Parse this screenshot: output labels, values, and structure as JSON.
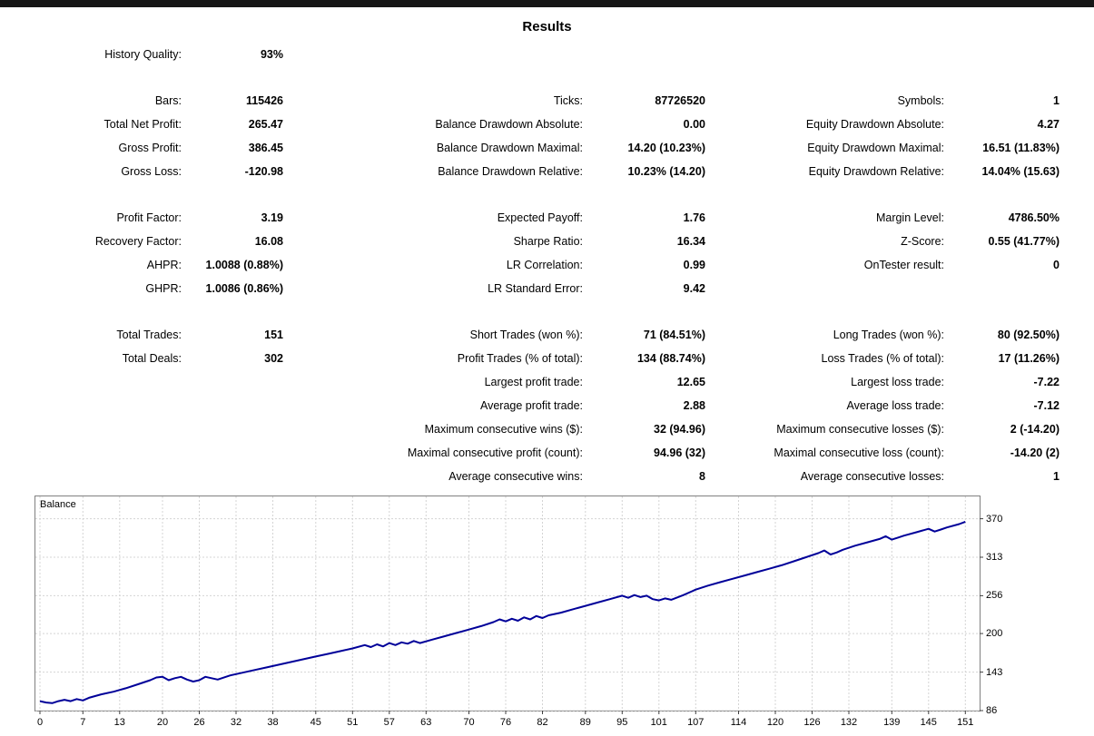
{
  "header": {
    "title": "Results"
  },
  "stats": {
    "sections": [
      {
        "rows": [
          [
            {
              "label": "History Quality:",
              "value": "93%"
            },
            null,
            null
          ]
        ]
      },
      {
        "rows": [
          [
            {
              "label": "Bars:",
              "value": "115426"
            },
            {
              "label": "Ticks:",
              "value": "87726520"
            },
            {
              "label": "Symbols:",
              "value": "1"
            }
          ],
          [
            {
              "label": "Total Net Profit:",
              "value": "265.47"
            },
            {
              "label": "Balance Drawdown Absolute:",
              "value": "0.00"
            },
            {
              "label": "Equity Drawdown Absolute:",
              "value": "4.27"
            }
          ],
          [
            {
              "label": "Gross Profit:",
              "value": "386.45"
            },
            {
              "label": "Balance Drawdown Maximal:",
              "value": "14.20 (10.23%)"
            },
            {
              "label": "Equity Drawdown Maximal:",
              "value": "16.51 (11.83%)"
            }
          ],
          [
            {
              "label": "Gross Loss:",
              "value": "-120.98"
            },
            {
              "label": "Balance Drawdown Relative:",
              "value": "10.23% (14.20)"
            },
            {
              "label": "Equity Drawdown Relative:",
              "value": "14.04% (15.63)"
            }
          ]
        ]
      },
      {
        "rows": [
          [
            {
              "label": "Profit Factor:",
              "value": "3.19"
            },
            {
              "label": "Expected Payoff:",
              "value": "1.76"
            },
            {
              "label": "Margin Level:",
              "value": "4786.50%"
            }
          ],
          [
            {
              "label": "Recovery Factor:",
              "value": "16.08"
            },
            {
              "label": "Sharpe Ratio:",
              "value": "16.34"
            },
            {
              "label": "Z-Score:",
              "value": "0.55 (41.77%)"
            }
          ],
          [
            {
              "label": "AHPR:",
              "value": "1.0088 (0.88%)"
            },
            {
              "label": "LR Correlation:",
              "value": "0.99"
            },
            {
              "label": "OnTester result:",
              "value": "0"
            }
          ],
          [
            {
              "label": "GHPR:",
              "value": "1.0086 (0.86%)"
            },
            {
              "label": "LR Standard Error:",
              "value": "9.42"
            },
            null
          ]
        ]
      },
      {
        "rows": [
          [
            {
              "label": "Total Trades:",
              "value": "151"
            },
            {
              "label": "Short Trades (won %):",
              "value": "71 (84.51%)"
            },
            {
              "label": "Long Trades (won %):",
              "value": "80 (92.50%)"
            }
          ],
          [
            {
              "label": "Total Deals:",
              "value": "302"
            },
            {
              "label": "Profit Trades (% of total):",
              "value": "134 (88.74%)"
            },
            {
              "label": "Loss Trades (% of total):",
              "value": "17 (11.26%)"
            }
          ],
          [
            null,
            {
              "label": "Largest profit trade:",
              "value": "12.65"
            },
            {
              "label": "Largest loss trade:",
              "value": "-7.22"
            }
          ],
          [
            null,
            {
              "label": "Average profit trade:",
              "value": "2.88"
            },
            {
              "label": "Average loss trade:",
              "value": "-7.12"
            }
          ],
          [
            null,
            {
              "label": "Maximum consecutive wins ($):",
              "value": "32 (94.96)"
            },
            {
              "label": "Maximum consecutive losses ($):",
              "value": "2 (-14.20)"
            }
          ],
          [
            null,
            {
              "label": "Maximal consecutive profit (count):",
              "value": "94.96 (32)"
            },
            {
              "label": "Maximal consecutive loss (count):",
              "value": "-14.20 (2)"
            }
          ],
          [
            null,
            {
              "label": "Average consecutive wins:",
              "value": "8"
            },
            {
              "label": "Average consecutive losses:",
              "value": "1"
            }
          ]
        ]
      }
    ]
  },
  "chart_data": {
    "type": "line",
    "series_name": "Balance",
    "title": "Balance",
    "xlabel": "",
    "ylabel": "",
    "line_color": "#000099",
    "xlim": [
      0,
      152
    ],
    "ylim": [
      86,
      403
    ],
    "xticks": [
      0,
      7,
      13,
      20,
      26,
      32,
      38,
      45,
      51,
      57,
      63,
      70,
      76,
      82,
      89,
      95,
      101,
      107,
      114,
      120,
      126,
      132,
      139,
      145,
      151
    ],
    "yticks": [
      86,
      143,
      200,
      256,
      313,
      370
    ],
    "points": [
      [
        0,
        100
      ],
      [
        1,
        98
      ],
      [
        2,
        97
      ],
      [
        3,
        100
      ],
      [
        4,
        102
      ],
      [
        5,
        100
      ],
      [
        6,
        103
      ],
      [
        7,
        101
      ],
      [
        8,
        105
      ],
      [
        10,
        110
      ],
      [
        12,
        114
      ],
      [
        14,
        119
      ],
      [
        16,
        125
      ],
      [
        18,
        131
      ],
      [
        19,
        135
      ],
      [
        20,
        136
      ],
      [
        21,
        131
      ],
      [
        22,
        134
      ],
      [
        23,
        136
      ],
      [
        24,
        132
      ],
      [
        25,
        129
      ],
      [
        26,
        131
      ],
      [
        27,
        136
      ],
      [
        28,
        134
      ],
      [
        29,
        132
      ],
      [
        31,
        138
      ],
      [
        33,
        142
      ],
      [
        35,
        146
      ],
      [
        37,
        150
      ],
      [
        39,
        154
      ],
      [
        41,
        158
      ],
      [
        43,
        162
      ],
      [
        45,
        166
      ],
      [
        47,
        170
      ],
      [
        49,
        174
      ],
      [
        51,
        178
      ],
      [
        53,
        183
      ],
      [
        54,
        180
      ],
      [
        55,
        184
      ],
      [
        56,
        181
      ],
      [
        57,
        186
      ],
      [
        58,
        183
      ],
      [
        59,
        187
      ],
      [
        60,
        185
      ],
      [
        61,
        189
      ],
      [
        62,
        186
      ],
      [
        64,
        191
      ],
      [
        66,
        196
      ],
      [
        68,
        201
      ],
      [
        70,
        206
      ],
      [
        72,
        211
      ],
      [
        74,
        217
      ],
      [
        75,
        221
      ],
      [
        76,
        218
      ],
      [
        77,
        222
      ],
      [
        78,
        219
      ],
      [
        79,
        224
      ],
      [
        80,
        221
      ],
      [
        81,
        226
      ],
      [
        82,
        223
      ],
      [
        83,
        227
      ],
      [
        85,
        231
      ],
      [
        87,
        236
      ],
      [
        89,
        241
      ],
      [
        91,
        246
      ],
      [
        93,
        251
      ],
      [
        95,
        256
      ],
      [
        96,
        253
      ],
      [
        97,
        257
      ],
      [
        98,
        254
      ],
      [
        99,
        256
      ],
      [
        100,
        251
      ],
      [
        101,
        249
      ],
      [
        102,
        252
      ],
      [
        103,
        250
      ],
      [
        105,
        257
      ],
      [
        107,
        265
      ],
      [
        109,
        271
      ],
      [
        111,
        276
      ],
      [
        113,
        281
      ],
      [
        115,
        286
      ],
      [
        117,
        291
      ],
      [
        119,
        296
      ],
      [
        121,
        301
      ],
      [
        123,
        307
      ],
      [
        125,
        313
      ],
      [
        127,
        319
      ],
      [
        128,
        323
      ],
      [
        129,
        317
      ],
      [
        130,
        320
      ],
      [
        131,
        324
      ],
      [
        133,
        330
      ],
      [
        135,
        335
      ],
      [
        137,
        340
      ],
      [
        138,
        344
      ],
      [
        139,
        339
      ],
      [
        140,
        342
      ],
      [
        141,
        345
      ],
      [
        143,
        350
      ],
      [
        145,
        355
      ],
      [
        146,
        351
      ],
      [
        147,
        354
      ],
      [
        148,
        357
      ],
      [
        150,
        362
      ],
      [
        151,
        365.47
      ]
    ]
  }
}
